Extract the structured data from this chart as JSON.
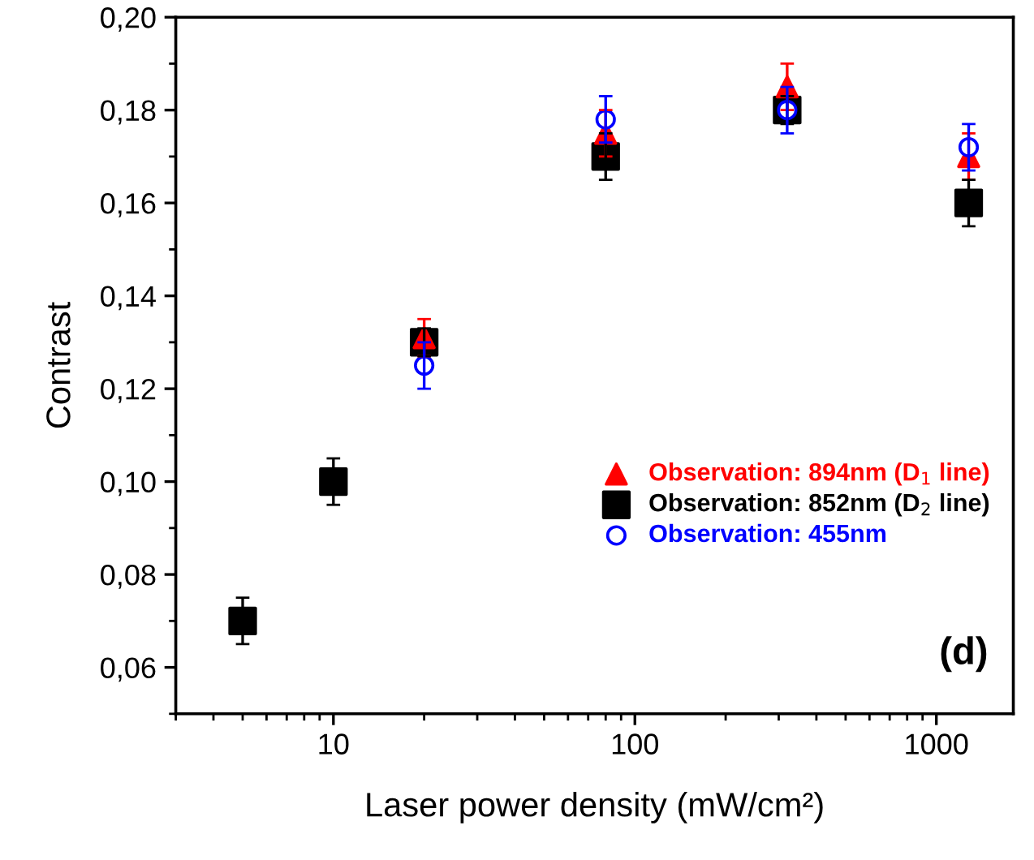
{
  "chart_data": {
    "type": "scatter",
    "xlabel": "Laser power density (mW/cm²)",
    "ylabel": "Contrast",
    "log": "x",
    "xlim": [
      3,
      1800
    ],
    "xticks": [
      10,
      100,
      1000
    ],
    "ylim": [
      0.05,
      0.2
    ],
    "yticks": [
      {
        "value": 0.06,
        "label": "0,06"
      },
      {
        "value": 0.08,
        "label": "0,08"
      },
      {
        "value": 0.1,
        "label": "0,10"
      },
      {
        "value": 0.12,
        "label": "0,12"
      },
      {
        "value": 0.14,
        "label": "0,14"
      },
      {
        "value": 0.16,
        "label": "0,16"
      },
      {
        "value": 0.18,
        "label": "0,18"
      },
      {
        "value": 0.2,
        "label": "0,20"
      }
    ],
    "grid": false,
    "legend": "right",
    "annotations": [
      "(d)"
    ],
    "series": [
      {
        "name": "Observation: 894nm (D$_{1}$ line)",
        "color": "#ff0000",
        "marker": "triangle",
        "x": [
          20,
          80,
          320,
          1280
        ],
        "values": [
          0.131,
          0.175,
          0.185,
          0.17
        ],
        "errors": [
          0.004,
          0.005,
          0.005,
          0.005
        ]
      },
      {
        "name": "Observation: 852nm (D$_{2}$ line)",
        "color": "#000000",
        "marker": "square",
        "x": [
          5,
          10,
          20,
          80,
          320,
          1280
        ],
        "values": [
          0.07,
          0.1,
          0.13,
          0.17,
          0.18,
          0.16
        ],
        "errors": [
          0.005,
          0.005,
          0.003,
          0.005,
          0.003,
          0.005
        ]
      },
      {
        "name": "Observation: 455nm",
        "color": "#0000ff",
        "marker": "circle",
        "x": [
          20,
          80,
          320,
          1280
        ],
        "values": [
          0.125,
          0.178,
          0.18,
          0.172
        ],
        "errors": [
          0.005,
          0.005,
          0.005,
          0.005
        ]
      }
    ]
  }
}
